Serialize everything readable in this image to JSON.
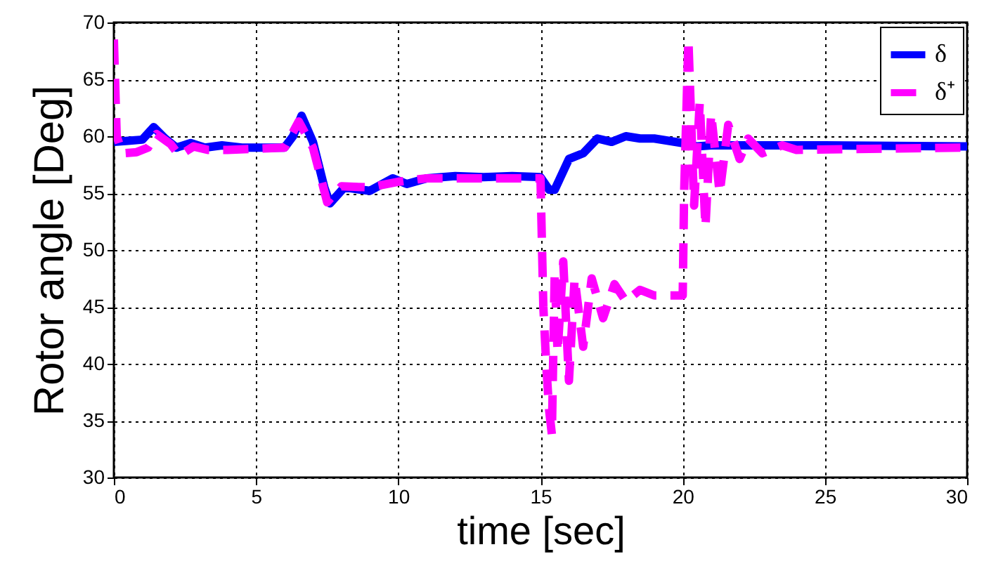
{
  "chart_data": {
    "type": "line",
    "xlabel": "time [sec]",
    "ylabel": "Rotor angle [Deg]",
    "xlim": [
      0,
      30
    ],
    "xticks": [
      0,
      5,
      10,
      15,
      20,
      25,
      30
    ],
    "ylim": [
      30,
      70
    ],
    "yticks": [
      30,
      35,
      40,
      45,
      50,
      55,
      60,
      65,
      70
    ],
    "grid": true,
    "legend": "top right",
    "series": [
      {
        "name": "δ",
        "color": "#0000ff",
        "line_style": "solid",
        "x": [
          0,
          0.5,
          1.0,
          1.4,
          1.8,
          2.2,
          2.7,
          3.2,
          3.8,
          4.5,
          6.0,
          6.3,
          6.6,
          7.0,
          7.4,
          7.6,
          8.1,
          9.0,
          9.8,
          10.3,
          11,
          12,
          13,
          14,
          15,
          15.3,
          15.5,
          16,
          16.5,
          17,
          17.5,
          18,
          18.5,
          19,
          20,
          20.5,
          21,
          25,
          30
        ],
        "values": [
          59.5,
          59.6,
          59.7,
          60.8,
          59.8,
          59.0,
          59.4,
          59.0,
          59.2,
          59.0,
          59.0,
          60.0,
          61.8,
          59.5,
          55.5,
          54.1,
          55.5,
          55.2,
          56.3,
          55.8,
          56.3,
          56.5,
          56.4,
          56.5,
          56.4,
          55.3,
          55.3,
          58.0,
          58.5,
          59.8,
          59.5,
          60.0,
          59.8,
          59.8,
          59.4,
          59.1,
          59.2,
          59.2,
          59.1
        ]
      },
      {
        "name": "δ⁺",
        "color": "#ff00ff",
        "line_style": "dashed",
        "x": [
          0,
          0.1,
          0.3,
          0.8,
          1.2,
          1.5,
          2.0,
          2.3,
          2.8,
          3.3,
          4,
          6,
          6.5,
          7.0,
          7.5,
          8,
          9,
          10,
          11,
          15,
          15.1,
          15.2,
          15.3,
          15.4,
          15.5,
          15.6,
          15.8,
          16.0,
          16.2,
          16.5,
          16.8,
          17.2,
          17.6,
          18,
          18.5,
          19,
          20,
          20.05,
          20.2,
          20.4,
          20.6,
          20.8,
          21.0,
          21.3,
          21.6,
          22,
          22.3,
          22.8,
          23.5,
          24,
          30
        ],
        "values": [
          68.5,
          60,
          58.5,
          58.6,
          59,
          60.2,
          59.3,
          58.3,
          59.1,
          58.8,
          58.8,
          59,
          61.3,
          59,
          54.2,
          55.6,
          55.5,
          56.0,
          56.3,
          56.3,
          45,
          40,
          36,
          33.8,
          48,
          41,
          49,
          38.5,
          47.5,
          41.5,
          47.5,
          44,
          47,
          45.5,
          46.5,
          46,
          46,
          55,
          68.5,
          53.9,
          63,
          52,
          62,
          55,
          61,
          58,
          59.8,
          58.5,
          59.2,
          58.8,
          59
        ]
      }
    ]
  }
}
